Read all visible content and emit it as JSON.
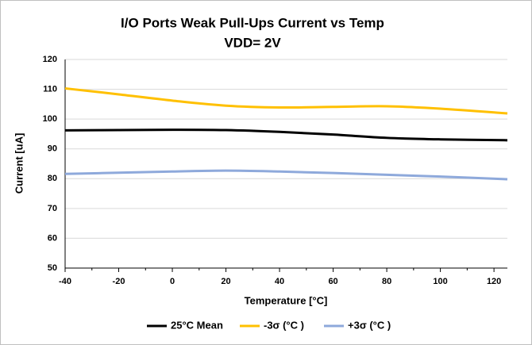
{
  "chart_data": {
    "type": "line",
    "title": "I/O Ports Weak Pull-Ups  Current vs Temp",
    "subtitle": "VDD= 2V",
    "x_label": "Temperature [°C]",
    "y_label": "Current [uA]",
    "x": [
      -40,
      -20,
      0,
      20,
      40,
      60,
      80,
      100,
      125
    ],
    "series": [
      {
        "name": "25°C Mean",
        "color": "#000000",
        "values": [
          96.2,
          96.3,
          96.4,
          96.3,
          95.7,
          94.8,
          93.7,
          93.2,
          92.9
        ]
      },
      {
        "name": "-3σ (°C )",
        "color": "#FFC000",
        "values": [
          110.3,
          108.3,
          106.2,
          104.5,
          103.9,
          104.1,
          104.3,
          103.5,
          101.9
        ]
      },
      {
        "name": "+3σ (°C )",
        "color": "#8EA9DB",
        "values": [
          81.6,
          82.0,
          82.4,
          82.7,
          82.4,
          81.9,
          81.3,
          80.7,
          79.8
        ]
      }
    ],
    "xlim": [
      -40,
      125
    ],
    "xticks": [
      -40,
      -20,
      0,
      20,
      40,
      60,
      80,
      100,
      120
    ],
    "ylim": [
      50,
      120
    ],
    "yticks": [
      50,
      60,
      70,
      80,
      90,
      100,
      110,
      120
    ],
    "grid": true,
    "legend": "bottom"
  }
}
